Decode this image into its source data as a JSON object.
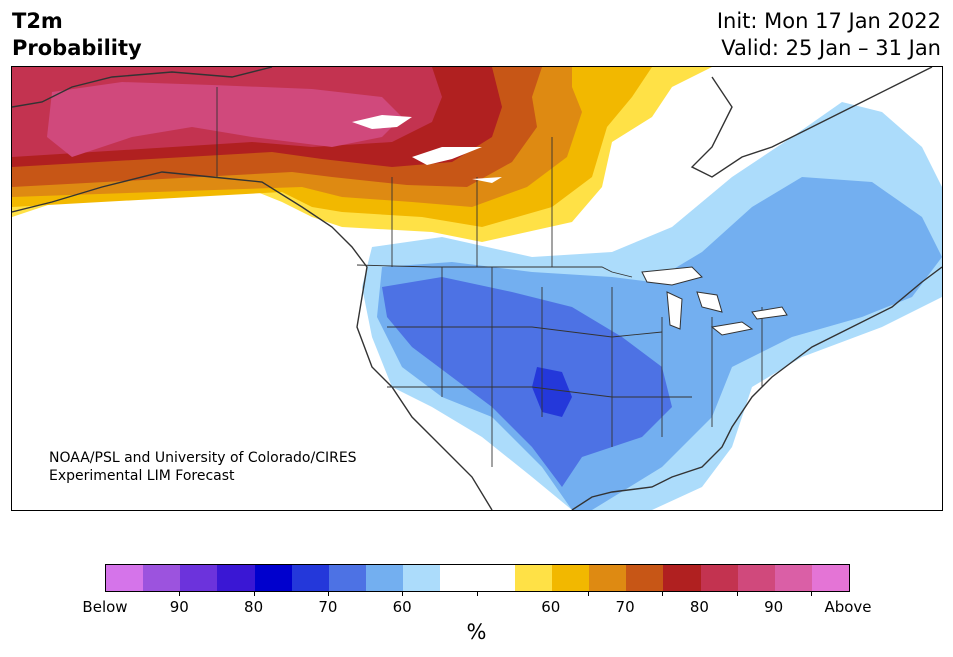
{
  "header": {
    "title_line1": "T2m",
    "title_line2": "Probability",
    "init": "Init: Mon 17 Jan 2022",
    "valid": "Valid: 25 Jan – 31 Jan"
  },
  "credit": {
    "line1": "NOAA/PSL and University of Colorado/CIRES",
    "line2": "Experimental LIM Forecast"
  },
  "colorbar": {
    "colors": [
      "#d574ea",
      "#9c53de",
      "#6c33dc",
      "#3a17d4",
      "#0000cd",
      "#2438da",
      "#4d72e4",
      "#73aff0",
      "#acdcfb",
      "#ffffff",
      "#ffffff",
      "#ffe146",
      "#f2b800",
      "#de8a12",
      "#c75616",
      "#b02020",
      "#c33350",
      "#d0497c",
      "#da5fa6",
      "#e474d6"
    ],
    "labels": [
      "Below",
      "90",
      "80",
      "70",
      "60",
      "60",
      "70",
      "80",
      "90",
      "Above"
    ],
    "unit": "%"
  },
  "map": {
    "warm_colors": {
      "p60": "#ffe146",
      "p65": "#f2b800",
      "p70": "#de8a12",
      "p75": "#c75616",
      "p80": "#b02020",
      "p85": "#c33350",
      "p90": "#d0497c"
    },
    "cold_colors": {
      "p60": "#acdcfb",
      "p65": "#73aff0",
      "p70": "#4d72e4",
      "p75": "#2438da"
    }
  }
}
